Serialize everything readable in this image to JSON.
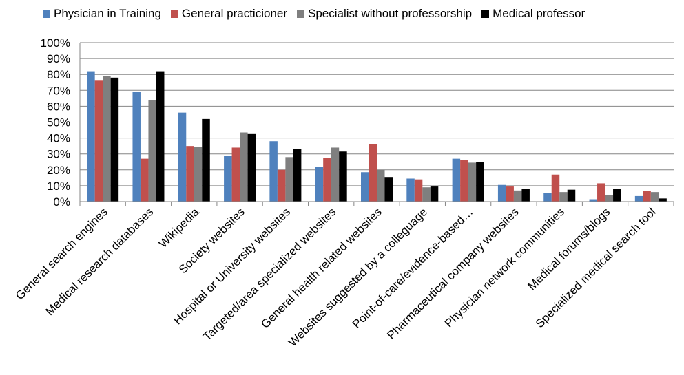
{
  "chart_data": {
    "type": "bar",
    "title": "",
    "xlabel": "",
    "ylabel": "",
    "ylim": [
      0,
      100
    ],
    "y_tick_step": 10,
    "y_tick_format": "percent",
    "legend_position": "top",
    "grid": true,
    "categories": [
      "General search engines",
      "Medical research databases",
      "Wikipedia",
      "Society websites",
      "Hospital or University websites",
      "Targeted/area specialized websites",
      "General health related websites",
      "Websites suggested by a colleguage",
      "Point-of-care/evidence-based…",
      "Pharmaceutical company websites",
      "Physician network communities",
      "Medical forums/blogs",
      "Specialized medical search tool"
    ],
    "series": [
      {
        "name": "Physician in Training",
        "color": "#4f81bd",
        "values": [
          82,
          69,
          56,
          29,
          38,
          22,
          18.5,
          14.5,
          27,
          10.5,
          5.5,
          1.5,
          3.5
        ]
      },
      {
        "name": "General practicioner",
        "color": "#c0504d",
        "values": [
          76.5,
          27,
          35,
          34,
          20,
          27.5,
          36,
          14,
          26,
          9.5,
          17,
          11.5,
          6.5
        ]
      },
      {
        "name": "Specialist without professorship",
        "color": "#7f7f7f",
        "values": [
          79,
          64,
          34.5,
          43.5,
          28,
          34,
          20,
          9,
          24.5,
          7,
          6,
          4,
          6
        ]
      },
      {
        "name": "Medical professor",
        "color": "#000000",
        "values": [
          78,
          82,
          52,
          42.5,
          33,
          31.5,
          15.5,
          9.5,
          25,
          8,
          7.5,
          8,
          2
        ]
      }
    ]
  }
}
